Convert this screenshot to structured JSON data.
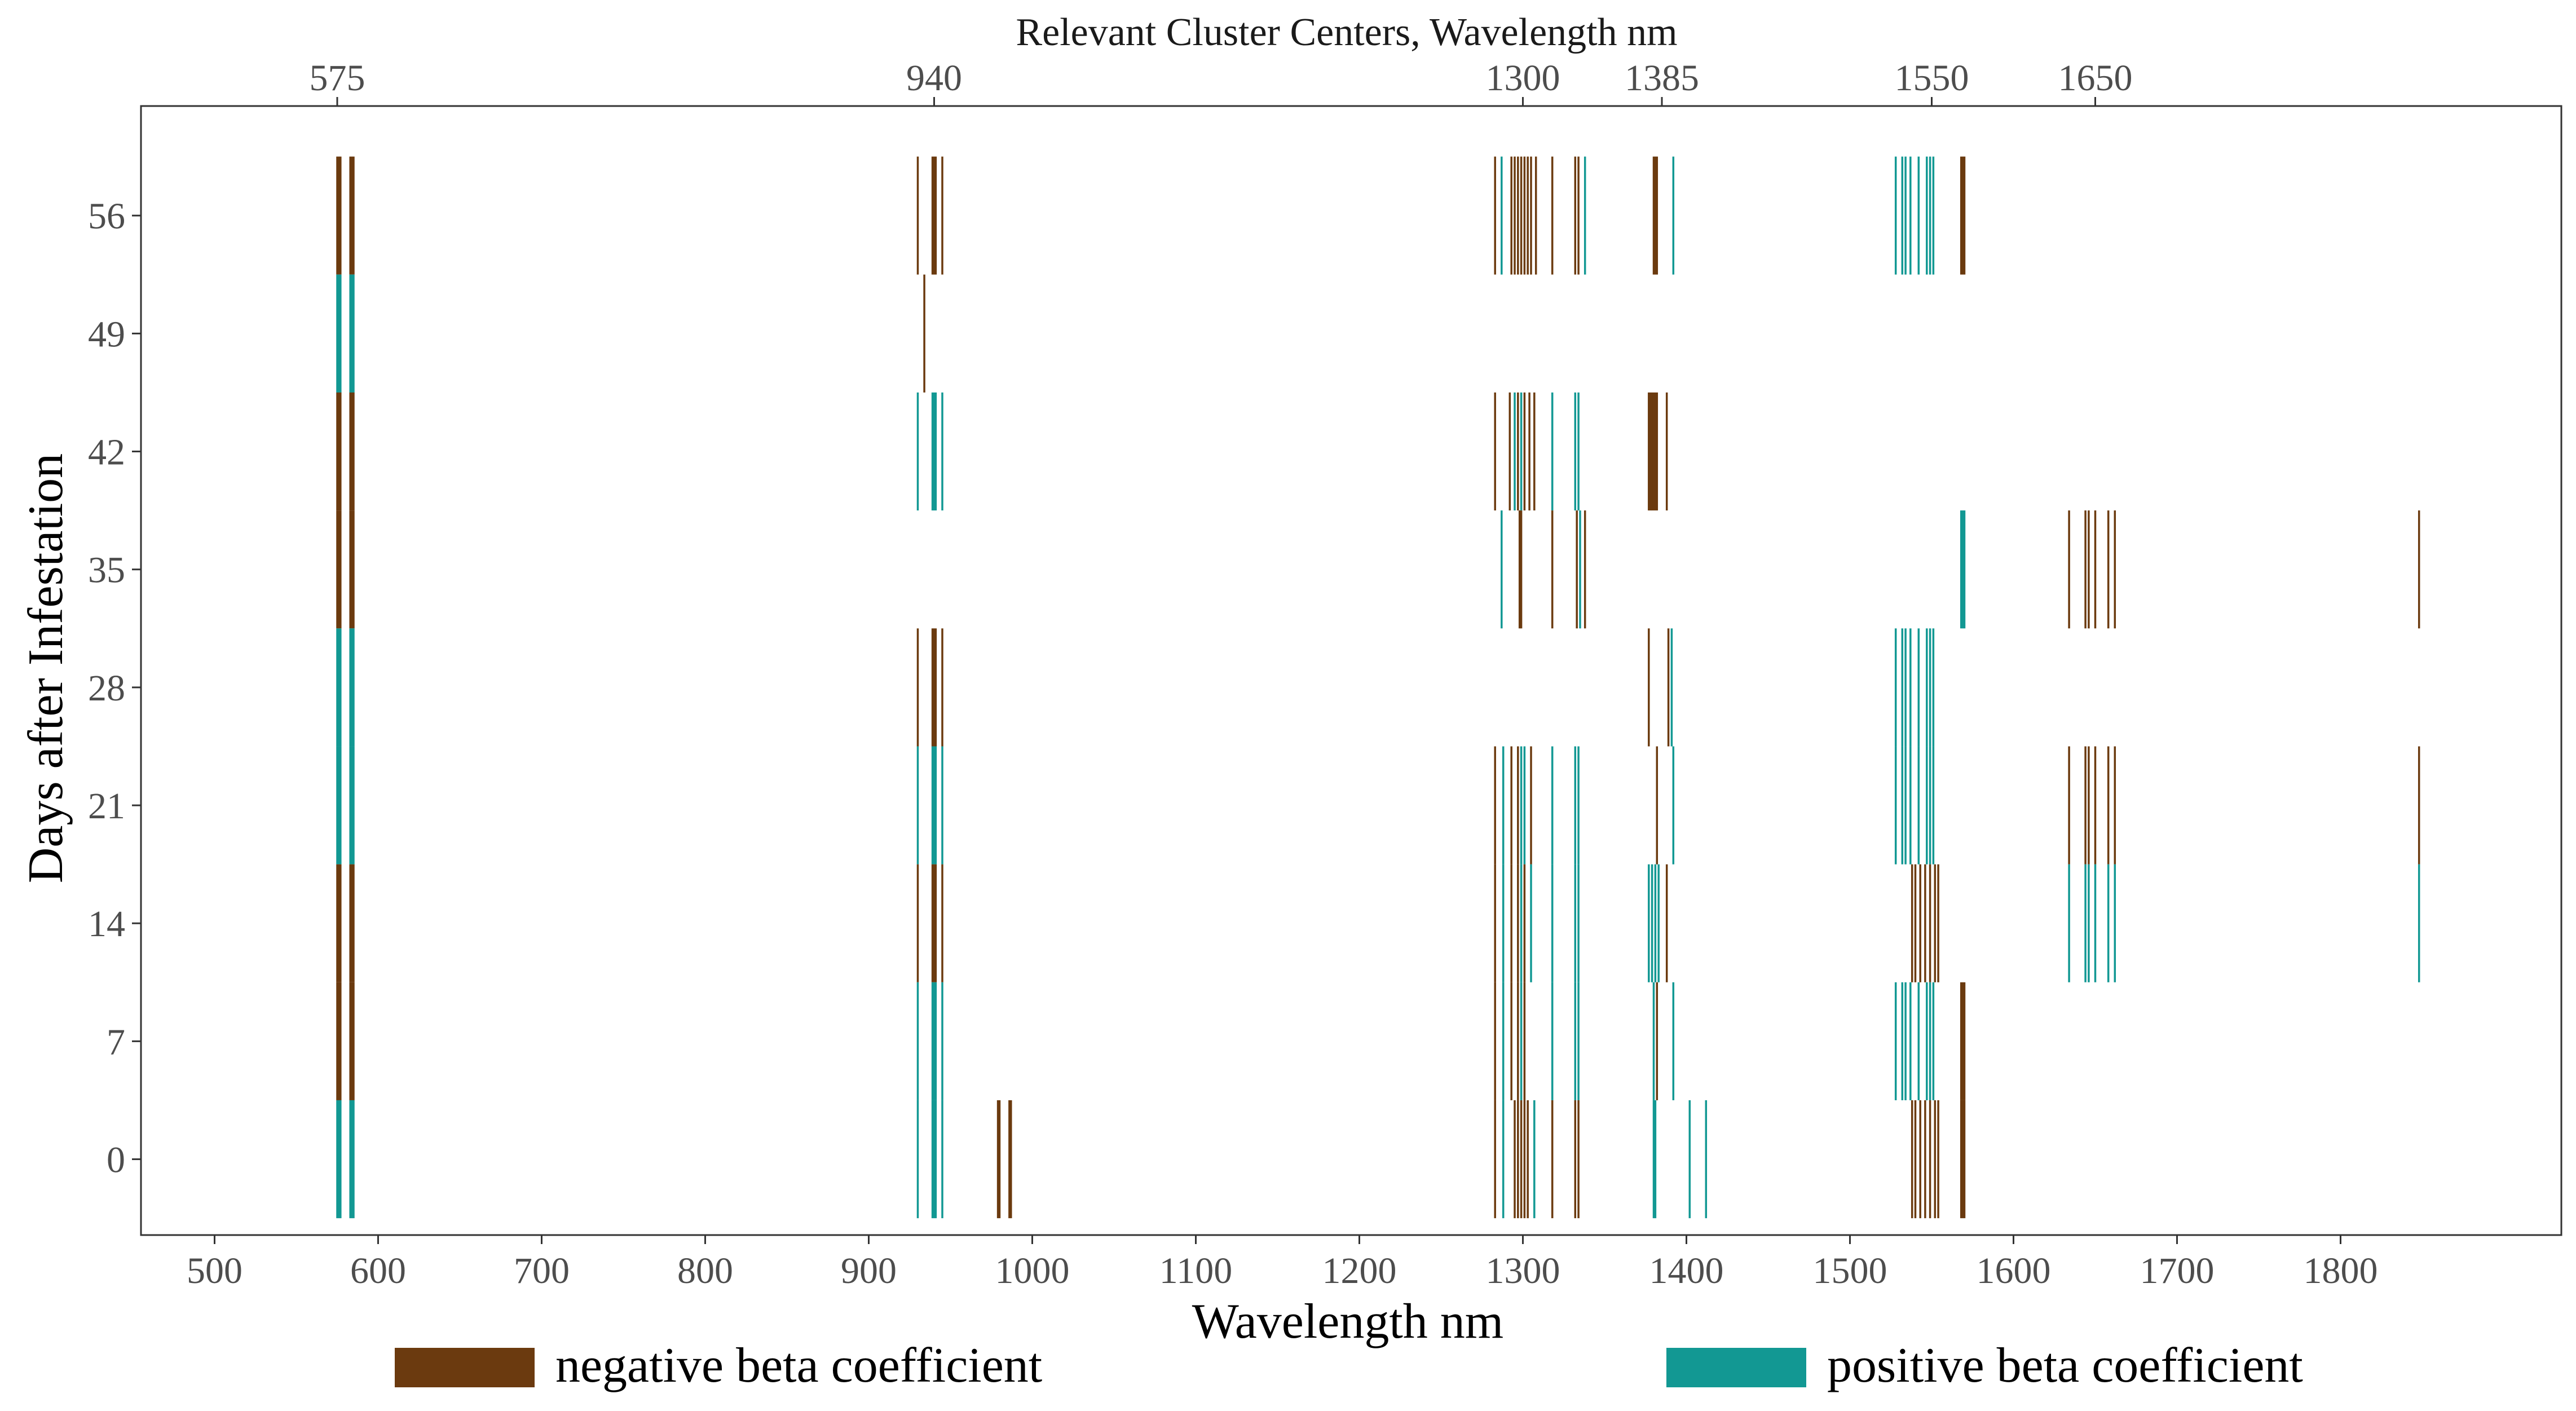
{
  "chart_data": {
    "type": "heatmap",
    "title": "Relevant Cluster Centers, Wavelength nm",
    "xlabel": "Wavelength nm",
    "ylabel": "Days after Infestation",
    "xlim": [
      455,
      1935
    ],
    "ylim": [
      -4.5,
      62.5
    ],
    "x_ticks": [
      500,
      600,
      700,
      800,
      900,
      1000,
      1100,
      1200,
      1300,
      1400,
      1500,
      1600,
      1700,
      1800
    ],
    "y_ticks": [
      0,
      7,
      14,
      21,
      28,
      35,
      42,
      49,
      56
    ],
    "top_ticks": [
      575,
      940,
      1300,
      1385,
      1550,
      1650
    ],
    "row_half_height_days": 3.5,
    "colors": {
      "negative": "#6b3a0f",
      "positive": "#129893"
    },
    "legend": [
      {
        "label": "negative beta coefficient",
        "sign": "negative"
      },
      {
        "label": "positive beta coefficient",
        "sign": "positive"
      }
    ],
    "series": [
      {
        "day": 56,
        "negative": [
          575,
          576,
          577,
          583,
          584,
          585,
          930,
          939,
          940,
          941,
          945,
          1283,
          1293,
          1295,
          1297,
          1299,
          1301,
          1303,
          1305,
          1308,
          1318,
          1332,
          1334,
          1380,
          1381,
          1382,
          1568,
          1569,
          1570
        ],
        "positive": [
          1287,
          1338,
          1392,
          1528,
          1532,
          1534,
          1537,
          1542,
          1547,
          1549,
          1551
        ]
      },
      {
        "day": 49,
        "negative": [
          934
        ],
        "positive": [
          575,
          576,
          577,
          583,
          584,
          585
        ]
      },
      {
        "day": 42,
        "negative": [
          575,
          576,
          577,
          583,
          584,
          585,
          1283,
          1292,
          1297,
          1301,
          1304,
          1307,
          1377,
          1378,
          1379,
          1380,
          1381,
          1382,
          1388
        ],
        "positive": [
          930,
          939,
          940,
          941,
          945,
          1295,
          1299,
          1318,
          1332,
          1334
        ]
      },
      {
        "day": 35,
        "negative": [
          575,
          576,
          577,
          583,
          584,
          585,
          1298,
          1299,
          1318,
          1333,
          1338,
          1634,
          1644,
          1646,
          1650,
          1658,
          1662,
          1848
        ],
        "positive": [
          1287,
          1335,
          1568,
          1569,
          1570
        ]
      },
      {
        "day": 28,
        "negative": [
          930,
          939,
          940,
          941,
          945,
          1377,
          1389
        ],
        "positive": [
          575,
          576,
          577,
          583,
          584,
          585,
          1391,
          1528,
          1532,
          1534,
          1537,
          1542,
          1547,
          1549,
          1551
        ]
      },
      {
        "day": 21,
        "negative": [
          1283,
          1293,
          1297,
          1305,
          1382,
          1634,
          1644,
          1646,
          1650,
          1658,
          1662,
          1848
        ],
        "positive": [
          575,
          576,
          577,
          583,
          584,
          585,
          930,
          939,
          940,
          941,
          945,
          1288,
          1299,
          1301,
          1318,
          1332,
          1334,
          1392,
          1528,
          1532,
          1534,
          1537,
          1542,
          1547,
          1549,
          1551
        ]
      },
      {
        "day": 14,
        "negative": [
          575,
          576,
          577,
          583,
          584,
          585,
          930,
          939,
          940,
          941,
          945,
          1283,
          1293,
          1297,
          1301,
          1388,
          1538,
          1540,
          1543,
          1546,
          1549,
          1552,
          1554
        ],
        "positive": [
          1288,
          1299,
          1305,
          1318,
          1332,
          1334,
          1377,
          1379,
          1381,
          1383,
          1634,
          1644,
          1646,
          1650,
          1658,
          1662,
          1848
        ]
      },
      {
        "day": 7,
        "negative": [
          575,
          576,
          577,
          583,
          584,
          585,
          1283,
          1293,
          1297,
          1301,
          1382,
          1568,
          1569,
          1570
        ],
        "positive": [
          930,
          939,
          940,
          941,
          945,
          1288,
          1299,
          1318,
          1332,
          1334,
          1380,
          1392,
          1528,
          1532,
          1534,
          1537,
          1542,
          1547,
          1549,
          1551
        ]
      },
      {
        "day": 0,
        "negative": [
          979,
          980,
          986,
          987,
          1283,
          1295,
          1297,
          1299,
          1301,
          1303,
          1318,
          1332,
          1334,
          1538,
          1540,
          1543,
          1546,
          1549,
          1552,
          1554,
          1568,
          1569,
          1570
        ],
        "positive": [
          575,
          576,
          577,
          583,
          584,
          585,
          930,
          939,
          940,
          941,
          945,
          1288,
          1307,
          1380,
          1381,
          1402,
          1412
        ]
      }
    ]
  }
}
